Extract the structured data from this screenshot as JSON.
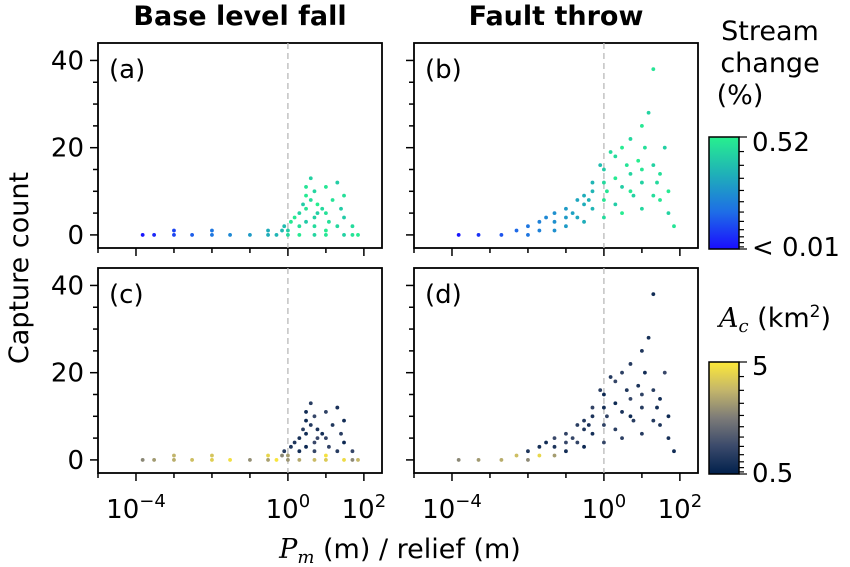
{
  "figure": {
    "column_titles": [
      "Base level fall",
      "Fault throw"
    ],
    "ylabel": "Capture count",
    "xlabel": "P_m (m) / relief (m)",
    "xlabel_parts": {
      "var": "P",
      "sub": "m",
      "rest": " (m) / relief (m)"
    }
  },
  "colorbars": [
    {
      "title_lines": [
        "Stream",
        "change",
        "(%)"
      ],
      "max_label": "0.52",
      "min_label": "< 0.01",
      "colors": [
        "#1a0dff",
        "#1e6ee6",
        "#1fb0b8",
        "#27f08e"
      ]
    },
    {
      "title_var": "A",
      "title_sub": "c",
      "title_rest": " (km",
      "title_sup": "2",
      "title_close": ")",
      "max_label": "5",
      "min_label": "0.5",
      "colors": [
        "#00204c",
        "#3b4a6b",
        "#7c7b78",
        "#c4b66a",
        "#fde938"
      ]
    }
  ],
  "chart_data": [
    {
      "type": "scatter",
      "panel": "(a)",
      "title": "Base level fall",
      "xscale": "log",
      "xlim": [
        1e-05,
        300
      ],
      "ylim": [
        -3,
        44
      ],
      "xticks": [
        "10^-4",
        "10^0",
        "10^2"
      ],
      "yticks": [
        0,
        20,
        40
      ],
      "vline_x": 1,
      "color_by": "stream_change",
      "points": [
        [
          0.00015,
          0
        ],
        [
          0.0003,
          0
        ],
        [
          0.001,
          0
        ],
        [
          0.003,
          0
        ],
        [
          0.01,
          0
        ],
        [
          0.03,
          0
        ],
        [
          0.1,
          0
        ],
        [
          0.3,
          0
        ],
        [
          0.001,
          1
        ],
        [
          0.01,
          1
        ],
        [
          0.3,
          1
        ],
        [
          0.5,
          0
        ],
        [
          1,
          0
        ],
        [
          2,
          0
        ],
        [
          5,
          0
        ],
        [
          10,
          0
        ],
        [
          30,
          0
        ],
        [
          50,
          0
        ],
        [
          1,
          1
        ],
        [
          2,
          2
        ],
        [
          3,
          3
        ],
        [
          5,
          2
        ],
        [
          10,
          1
        ],
        [
          20,
          2
        ],
        [
          1.5,
          4
        ],
        [
          2,
          5
        ],
        [
          3,
          6
        ],
        [
          5,
          4
        ],
        [
          10,
          5
        ],
        [
          2.5,
          7
        ],
        [
          4,
          8
        ],
        [
          6,
          7
        ],
        [
          8,
          6
        ],
        [
          3,
          9
        ],
        [
          5,
          10
        ],
        [
          10,
          11
        ],
        [
          4,
          13
        ],
        [
          15,
          8
        ],
        [
          20,
          12
        ],
        [
          30,
          9
        ],
        [
          30,
          4
        ],
        [
          50,
          2
        ],
        [
          70,
          0
        ],
        [
          0.8,
          2
        ],
        [
          1.2,
          3
        ],
        [
          0.7,
          1
        ],
        [
          3,
          11
        ],
        [
          6,
          5
        ],
        [
          12,
          3
        ],
        [
          25,
          6
        ]
      ]
    },
    {
      "type": "scatter",
      "panel": "(b)",
      "title": "Fault throw",
      "xscale": "log",
      "xlim": [
        1e-05,
        300
      ],
      "ylim": [
        -3,
        44
      ],
      "xticks": [
        "10^-4",
        "10^0",
        "10^2"
      ],
      "yticks": [
        0,
        20,
        40
      ],
      "vline_x": 1,
      "color_by": "stream_change",
      "points": [
        [
          0.00015,
          0
        ],
        [
          0.0005,
          0
        ],
        [
          0.002,
          0
        ],
        [
          0.005,
          1
        ],
        [
          0.01,
          2
        ],
        [
          0.02,
          3
        ],
        [
          0.03,
          4
        ],
        [
          0.05,
          5
        ],
        [
          0.1,
          6
        ],
        [
          0.2,
          8
        ],
        [
          0.3,
          9
        ],
        [
          0.5,
          10
        ],
        [
          1,
          12
        ],
        [
          2,
          13
        ],
        [
          5,
          14
        ],
        [
          10,
          15
        ],
        [
          20,
          16
        ],
        [
          0.01,
          0
        ],
        [
          0.05,
          1
        ],
        [
          0.1,
          2
        ],
        [
          0.3,
          3
        ],
        [
          1,
          4
        ],
        [
          3,
          5
        ],
        [
          10,
          6
        ],
        [
          30,
          8
        ],
        [
          50,
          5
        ],
        [
          70,
          2
        ],
        [
          0.02,
          1
        ],
        [
          0.2,
          4
        ],
        [
          2,
          7
        ],
        [
          20,
          9
        ],
        [
          0.05,
          3
        ],
        [
          0.5,
          6
        ],
        [
          5,
          10
        ],
        [
          0.1,
          4
        ],
        [
          1,
          8
        ],
        [
          10,
          12
        ],
        [
          0.3,
          7
        ],
        [
          3,
          11
        ],
        [
          30,
          14
        ],
        [
          1,
          15
        ],
        [
          2,
          18
        ],
        [
          3,
          20
        ],
        [
          5,
          22
        ],
        [
          10,
          25
        ],
        [
          15,
          28
        ],
        [
          20,
          38
        ],
        [
          40,
          20
        ],
        [
          0.5,
          12
        ],
        [
          0.8,
          16
        ],
        [
          1.5,
          19
        ],
        [
          8,
          17
        ],
        [
          25,
          12
        ],
        [
          50,
          10
        ],
        [
          0.15,
          5
        ],
        [
          1.2,
          10
        ],
        [
          6,
          9
        ],
        [
          4,
          16
        ],
        [
          0.4,
          8
        ],
        [
          12,
          20
        ]
      ]
    },
    {
      "type": "scatter",
      "panel": "(c)",
      "title": "",
      "xscale": "log",
      "xlim": [
        1e-05,
        300
      ],
      "ylim": [
        -3,
        44
      ],
      "xticks": [
        "10^-4",
        "10^0",
        "10^2"
      ],
      "yticks": [
        0,
        20,
        40
      ],
      "vline_x": 1,
      "color_by": "A_c",
      "points": [
        [
          0.00015,
          0
        ],
        [
          0.0003,
          0
        ],
        [
          0.001,
          0
        ],
        [
          0.003,
          0
        ],
        [
          0.01,
          0
        ],
        [
          0.03,
          0
        ],
        [
          0.1,
          0
        ],
        [
          0.3,
          0
        ],
        [
          0.001,
          1
        ],
        [
          0.01,
          1
        ],
        [
          0.3,
          1
        ],
        [
          0.5,
          0
        ],
        [
          1,
          0
        ],
        [
          2,
          0
        ],
        [
          5,
          0
        ],
        [
          10,
          0
        ],
        [
          30,
          0
        ],
        [
          50,
          0
        ],
        [
          1,
          1
        ],
        [
          2,
          2
        ],
        [
          3,
          3
        ],
        [
          5,
          2
        ],
        [
          10,
          1
        ],
        [
          20,
          2
        ],
        [
          1.5,
          4
        ],
        [
          2,
          5
        ],
        [
          3,
          6
        ],
        [
          5,
          4
        ],
        [
          10,
          5
        ],
        [
          2.5,
          7
        ],
        [
          4,
          8
        ],
        [
          6,
          7
        ],
        [
          8,
          6
        ],
        [
          3,
          9
        ],
        [
          5,
          10
        ],
        [
          10,
          11
        ],
        [
          4,
          13
        ],
        [
          15,
          8
        ],
        [
          20,
          12
        ],
        [
          30,
          9
        ],
        [
          30,
          4
        ],
        [
          50,
          2
        ],
        [
          70,
          0
        ],
        [
          0.8,
          2
        ],
        [
          1.2,
          3
        ],
        [
          0.7,
          1
        ],
        [
          3,
          11
        ],
        [
          6,
          5
        ],
        [
          12,
          3
        ],
        [
          25,
          6
        ]
      ]
    },
    {
      "type": "scatter",
      "panel": "(d)",
      "title": "",
      "xscale": "log",
      "xlim": [
        1e-05,
        300
      ],
      "ylim": [
        -3,
        44
      ],
      "xticks": [
        "10^-4",
        "10^0",
        "10^2"
      ],
      "yticks": [
        0,
        20,
        40
      ],
      "vline_x": 1,
      "color_by": "A_c",
      "points": [
        [
          0.00015,
          0
        ],
        [
          0.0005,
          0
        ],
        [
          0.002,
          0
        ],
        [
          0.005,
          1
        ],
        [
          0.01,
          2
        ],
        [
          0.02,
          3
        ],
        [
          0.03,
          4
        ],
        [
          0.05,
          5
        ],
        [
          0.1,
          6
        ],
        [
          0.2,
          8
        ],
        [
          0.3,
          9
        ],
        [
          0.5,
          10
        ],
        [
          1,
          12
        ],
        [
          2,
          13
        ],
        [
          5,
          14
        ],
        [
          10,
          15
        ],
        [
          20,
          16
        ],
        [
          0.01,
          0
        ],
        [
          0.05,
          1
        ],
        [
          0.1,
          2
        ],
        [
          0.3,
          3
        ],
        [
          1,
          4
        ],
        [
          3,
          5
        ],
        [
          10,
          6
        ],
        [
          30,
          8
        ],
        [
          50,
          5
        ],
        [
          70,
          2
        ],
        [
          0.02,
          1
        ],
        [
          0.2,
          4
        ],
        [
          2,
          7
        ],
        [
          20,
          9
        ],
        [
          0.05,
          3
        ],
        [
          0.5,
          6
        ],
        [
          5,
          10
        ],
        [
          0.1,
          4
        ],
        [
          1,
          8
        ],
        [
          10,
          12
        ],
        [
          0.3,
          7
        ],
        [
          3,
          11
        ],
        [
          30,
          14
        ],
        [
          1,
          15
        ],
        [
          2,
          18
        ],
        [
          3,
          20
        ],
        [
          5,
          22
        ],
        [
          10,
          25
        ],
        [
          15,
          28
        ],
        [
          20,
          38
        ],
        [
          40,
          20
        ],
        [
          0.5,
          12
        ],
        [
          0.8,
          16
        ],
        [
          1.5,
          19
        ],
        [
          8,
          17
        ],
        [
          25,
          12
        ],
        [
          50,
          10
        ],
        [
          0.15,
          5
        ],
        [
          1.2,
          10
        ],
        [
          6,
          9
        ],
        [
          4,
          16
        ],
        [
          0.4,
          8
        ],
        [
          12,
          20
        ]
      ]
    }
  ]
}
